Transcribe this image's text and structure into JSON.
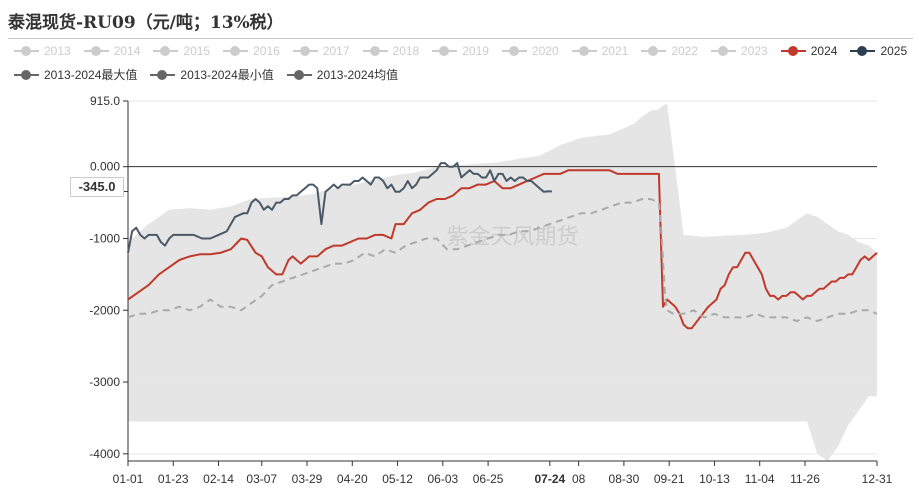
{
  "title": "泰混现货-RU09（元/吨；13%税）",
  "watermark": "紫金天风期货",
  "current_label": "-345.0",
  "legend_row1": [
    {
      "label": "2013",
      "color": "#cccccc",
      "active": false
    },
    {
      "label": "2014",
      "color": "#cccccc",
      "active": false
    },
    {
      "label": "2015",
      "color": "#cccccc",
      "active": false
    },
    {
      "label": "2016",
      "color": "#cccccc",
      "active": false
    },
    {
      "label": "2017",
      "color": "#cccccc",
      "active": false
    },
    {
      "label": "2018",
      "color": "#cccccc",
      "active": false
    },
    {
      "label": "2019",
      "color": "#cccccc",
      "active": false
    },
    {
      "label": "2020",
      "color": "#cccccc",
      "active": false
    },
    {
      "label": "2021",
      "color": "#cccccc",
      "active": false
    },
    {
      "label": "2022",
      "color": "#cccccc",
      "active": false
    },
    {
      "label": "2023",
      "color": "#cccccc",
      "active": false
    },
    {
      "label": "2024",
      "color": "#c0392b",
      "active": true
    },
    {
      "label": "2025",
      "color": "#2c3e50",
      "active": true
    }
  ],
  "legend_row2": [
    {
      "label": "2013-2024最大值",
      "color": "#666666",
      "active": true
    },
    {
      "label": "2013-2024最小值",
      "color": "#666666",
      "active": true
    },
    {
      "label": "2013-2024均值",
      "color": "#666666",
      "active": true
    }
  ],
  "chart_data": {
    "type": "line",
    "title": "泰混现货-RU09（元/吨；13%税）",
    "xlabel": "",
    "ylabel": "",
    "ylim": [
      -4100,
      915
    ],
    "yticks": [
      915,
      0,
      -1000,
      -2000,
      -3000,
      -4000
    ],
    "ytick_labels": [
      "915.0",
      "0.000",
      "-1000",
      "-2000",
      "-3000",
      "-4000"
    ],
    "xticks": [
      "01-01",
      "01-23",
      "02-14",
      "03-07",
      "03-29",
      "04-20",
      "05-12",
      "06-03",
      "06-25",
      "07-24",
      "08",
      "08-30",
      "09-21",
      "10-13",
      "11-04",
      "11-26",
      "12-31"
    ],
    "xtick_days": [
      0,
      22,
      44,
      65,
      87,
      109,
      131,
      153,
      175,
      205,
      219,
      241,
      263,
      285,
      307,
      329,
      364
    ],
    "highlight_tick": "07-24",
    "grid": true,
    "legend_position": "top",
    "band": {
      "name": "2013-2024最大值 / 2013-2024最小值",
      "color": "#e5e5e5",
      "x": [
        0,
        10,
        20,
        30,
        40,
        50,
        60,
        70,
        80,
        90,
        100,
        110,
        120,
        130,
        140,
        150,
        160,
        170,
        180,
        190,
        200,
        210,
        220,
        228,
        234,
        238,
        242,
        246,
        250,
        254,
        258,
        260,
        262,
        270,
        280,
        290,
        300,
        310,
        320,
        330,
        335,
        340,
        345,
        350,
        355,
        360,
        364
      ],
      "upper": [
        -1050,
        -800,
        -600,
        -580,
        -600,
        -550,
        -450,
        -430,
        -420,
        -380,
        -300,
        -250,
        -180,
        -120,
        -80,
        0,
        20,
        40,
        60,
        110,
        150,
        300,
        400,
        430,
        450,
        500,
        550,
        600,
        700,
        780,
        800,
        850,
        880,
        -950,
        -980,
        -960,
        -950,
        -920,
        -850,
        -650,
        -700,
        -800,
        -900,
        -950,
        -1050,
        -1100,
        -1200
      ],
      "lower": [
        -3550,
        -3550,
        -3550,
        -3550,
        -3550,
        -3550,
        -3550,
        -3550,
        -3550,
        -3550,
        -3550,
        -3550,
        -3550,
        -3550,
        -3550,
        -3550,
        -3550,
        -3550,
        -3550,
        -3550,
        -3550,
        -3550,
        -3550,
        -3550,
        -3550,
        -3550,
        -3550,
        -3550,
        -3550,
        -3550,
        -3550,
        -3550,
        -3550,
        -3550,
        -3550,
        -3550,
        -3550,
        -3550,
        -3550,
        -3550,
        -4000,
        -4100,
        -3900,
        -3600,
        -3400,
        -3200,
        -3200
      ]
    },
    "series": [
      {
        "name": "2024",
        "color": "#c0392b",
        "style": "solid",
        "x": [
          0,
          5,
          10,
          15,
          20,
          25,
          30,
          35,
          40,
          45,
          50,
          55,
          58,
          62,
          65,
          68,
          72,
          75,
          78,
          80,
          82,
          84,
          86,
          88,
          92,
          96,
          100,
          104,
          108,
          112,
          116,
          120,
          124,
          128,
          130,
          134,
          138,
          142,
          146,
          150,
          154,
          158,
          162,
          166,
          170,
          174,
          178,
          182,
          186,
          190,
          194,
          198,
          202,
          206,
          210,
          214,
          218,
          222,
          226,
          230,
          234,
          238,
          242,
          246,
          250,
          254,
          258,
          260,
          262,
          264,
          266,
          268,
          270,
          272,
          274,
          278,
          282,
          286,
          288,
          290,
          292,
          294,
          296,
          298,
          300,
          302,
          304,
          306,
          308,
          310,
          312,
          314,
          316,
          318,
          320,
          322,
          324,
          326,
          328,
          330,
          332,
          334,
          336,
          338,
          340,
          342,
          344,
          346,
          348,
          350,
          352,
          354,
          356,
          358,
          360,
          362,
          364
        ],
        "y": [
          -1850,
          -1750,
          -1650,
          -1500,
          -1400,
          -1300,
          -1250,
          -1220,
          -1220,
          -1200,
          -1150,
          -1000,
          -1020,
          -1200,
          -1250,
          -1400,
          -1500,
          -1500,
          -1300,
          -1250,
          -1300,
          -1350,
          -1300,
          -1250,
          -1250,
          -1150,
          -1100,
          -1100,
          -1050,
          -1000,
          -1000,
          -950,
          -950,
          -1000,
          -800,
          -800,
          -650,
          -600,
          -500,
          -450,
          -450,
          -400,
          -300,
          -300,
          -250,
          -250,
          -200,
          -300,
          -300,
          -250,
          -200,
          -150,
          -100,
          -100,
          -100,
          -50,
          -50,
          -50,
          -50,
          -50,
          -50,
          -100,
          -100,
          -100,
          -100,
          -100,
          -100,
          -1950,
          -1850,
          -1900,
          -1950,
          -2050,
          -2200,
          -2250,
          -2250,
          -2100,
          -1950,
          -1850,
          -1700,
          -1650,
          -1500,
          -1400,
          -1400,
          -1300,
          -1200,
          -1200,
          -1300,
          -1400,
          -1500,
          -1700,
          -1800,
          -1800,
          -1850,
          -1800,
          -1800,
          -1750,
          -1750,
          -1800,
          -1850,
          -1800,
          -1800,
          -1750,
          -1700,
          -1700,
          -1650,
          -1600,
          -1600,
          -1550,
          -1550,
          -1500,
          -1500,
          -1400,
          -1300,
          -1250,
          -1300,
          -1250,
          -1200
        ]
      },
      {
        "name": "2025",
        "color": "#4a5966",
        "style": "solid",
        "x": [
          0,
          2,
          4,
          6,
          8,
          10,
          12,
          14,
          16,
          18,
          20,
          22,
          24,
          26,
          28,
          32,
          36,
          40,
          44,
          48,
          52,
          56,
          58,
          60,
          62,
          64,
          66,
          68,
          70,
          72,
          74,
          76,
          78,
          80,
          82,
          84,
          86,
          88,
          90,
          92,
          94,
          96,
          98,
          100,
          102,
          104,
          106,
          108,
          110,
          112,
          114,
          116,
          118,
          120,
          122,
          124,
          126,
          128,
          130,
          132,
          134,
          136,
          138,
          140,
          142,
          144,
          146,
          148,
          150,
          152,
          154,
          156,
          158,
          160,
          162,
          164,
          166,
          168,
          170,
          172,
          174,
          176,
          178,
          180,
          182,
          184,
          186,
          188,
          190,
          192,
          194,
          196,
          198,
          200,
          202,
          204,
          206
        ],
        "y": [
          -1200,
          -900,
          -850,
          -950,
          -1000,
          -950,
          -950,
          -950,
          -1050,
          -1100,
          -1000,
          -950,
          -950,
          -950,
          -950,
          -950,
          -1000,
          -1000,
          -950,
          -900,
          -700,
          -650,
          -650,
          -500,
          -450,
          -500,
          -600,
          -550,
          -600,
          -500,
          -500,
          -450,
          -450,
          -400,
          -400,
          -350,
          -300,
          -250,
          -250,
          -300,
          -800,
          -350,
          -300,
          -250,
          -300,
          -250,
          -250,
          -250,
          -200,
          -200,
          -150,
          -200,
          -250,
          -150,
          -150,
          -200,
          -300,
          -250,
          -350,
          -350,
          -300,
          -200,
          -300,
          -250,
          -150,
          -150,
          -150,
          -100,
          -50,
          50,
          50,
          0,
          0,
          50,
          -150,
          -100,
          -50,
          -100,
          -100,
          -150,
          -150,
          -50,
          -200,
          -100,
          -100,
          -200,
          -150,
          -200,
          -150,
          -150,
          -200,
          -200,
          -250,
          -300,
          -350,
          -345,
          -345
        ]
      },
      {
        "name": "2013-2024均值",
        "color": "#aaaaaa",
        "style": "dashed",
        "x": [
          0,
          5,
          10,
          15,
          20,
          25,
          30,
          35,
          40,
          45,
          50,
          55,
          60,
          65,
          70,
          75,
          80,
          85,
          90,
          95,
          100,
          105,
          110,
          115,
          120,
          125,
          130,
          135,
          140,
          145,
          150,
          155,
          160,
          165,
          170,
          175,
          180,
          185,
          190,
          195,
          200,
          205,
          210,
          215,
          220,
          225,
          230,
          235,
          240,
          245,
          250,
          254,
          258,
          259,
          260,
          261,
          262,
          265,
          270,
          275,
          280,
          285,
          290,
          295,
          300,
          305,
          310,
          315,
          320,
          325,
          330,
          335,
          340,
          345,
          350,
          355,
          360,
          364
        ],
        "y": [
          -2100,
          -2050,
          -2050,
          -2000,
          -2000,
          -1950,
          -2000,
          -1950,
          -1850,
          -1950,
          -1950,
          -2000,
          -1900,
          -1800,
          -1650,
          -1600,
          -1550,
          -1500,
          -1450,
          -1400,
          -1350,
          -1350,
          -1300,
          -1200,
          -1250,
          -1150,
          -1200,
          -1100,
          -1050,
          -1000,
          -1000,
          -1150,
          -1150,
          -1100,
          -1050,
          -1000,
          -950,
          -950,
          -900,
          -900,
          -850,
          -800,
          -750,
          -700,
          -650,
          -650,
          -600,
          -550,
          -500,
          -500,
          -450,
          -450,
          -500,
          -800,
          -1300,
          -1800,
          -2000,
          -2050,
          -2050,
          -2000,
          -2100,
          -2050,
          -2100,
          -2100,
          -2100,
          -2050,
          -2100,
          -2100,
          -2100,
          -2150,
          -2100,
          -2150,
          -2100,
          -2050,
          -2050,
          -2000,
          -2000,
          -2050
        ]
      }
    ]
  }
}
